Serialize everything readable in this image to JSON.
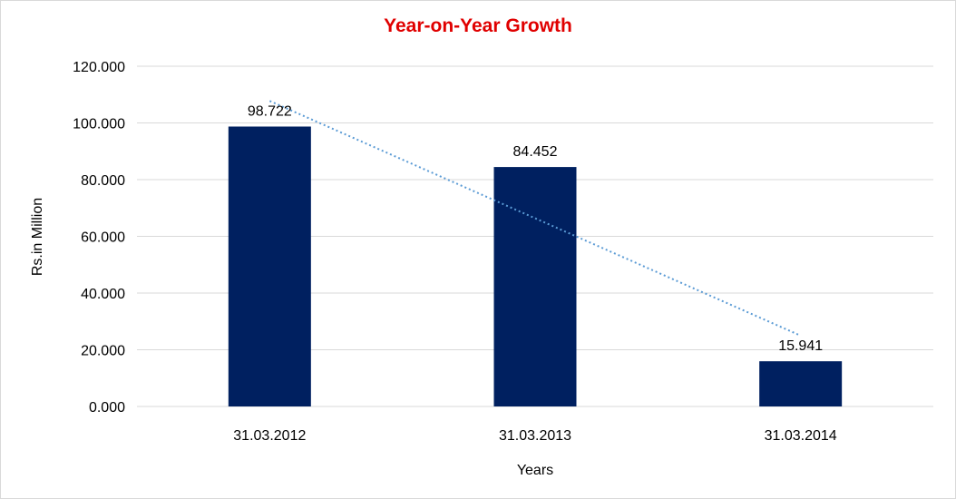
{
  "chart_data": {
    "type": "bar",
    "title": "Year-on-Year Growth",
    "xlabel": "Years",
    "ylabel": "Rs.in Million",
    "categories": [
      "31.03.2012",
      "31.03.2013",
      "31.03.2014"
    ],
    "values": [
      98.722,
      84.452,
      15.941
    ],
    "data_labels": [
      "98.722",
      "84.452",
      "15.941"
    ],
    "y_ticks": [
      "0.000",
      "20.000",
      "40.000",
      "60.000",
      "80.000",
      "100.000",
      "120.000"
    ],
    "y_tick_values": [
      0,
      20,
      40,
      60,
      80,
      100,
      120
    ],
    "ylim": [
      0,
      120
    ],
    "grid": true,
    "legend": "none",
    "trendline": {
      "type": "linear",
      "style": "dotted"
    },
    "colors": {
      "bar": "#002060",
      "trendline": "#5b9bd5",
      "title": "#e00000",
      "grid": "#d9d9d9"
    }
  }
}
